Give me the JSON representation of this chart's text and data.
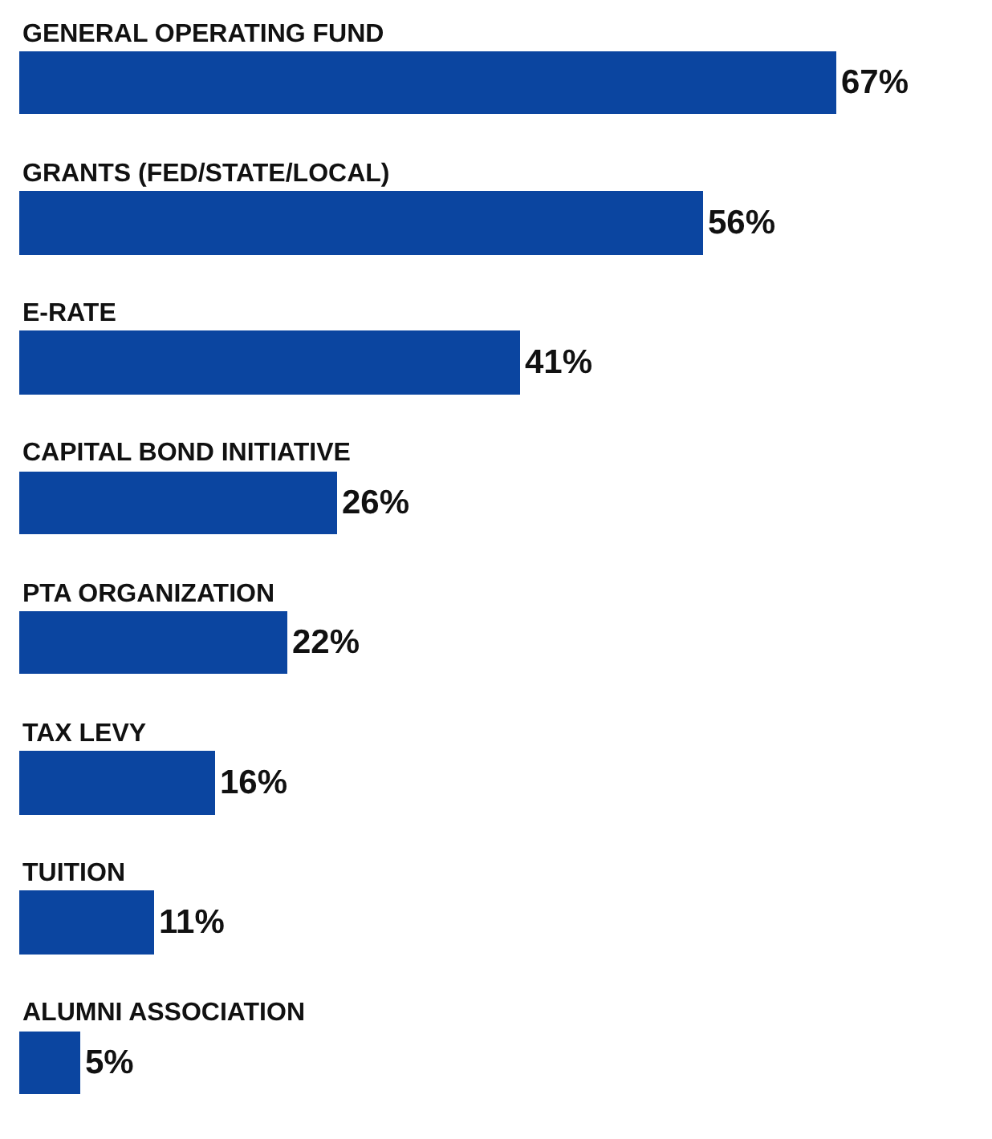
{
  "chart_data": {
    "type": "bar",
    "orientation": "horizontal",
    "categories": [
      "GENERAL OPERATING FUND",
      "GRANTS (FED/STATE/LOCAL)",
      "E-RATE",
      "CAPITAL BOND INITIATIVE",
      "PTA ORGANIZATION",
      "TAX LEVY",
      "TUITION",
      "ALUMNI ASSOCIATION"
    ],
    "values": [
      67,
      56,
      41,
      26,
      22,
      16,
      11,
      5
    ],
    "value_labels": [
      "67%",
      "56%",
      "41%",
      "26%",
      "22%",
      "16%",
      "11%",
      "5%"
    ],
    "color": "#0b45a0",
    "grid": false,
    "legend": false
  }
}
